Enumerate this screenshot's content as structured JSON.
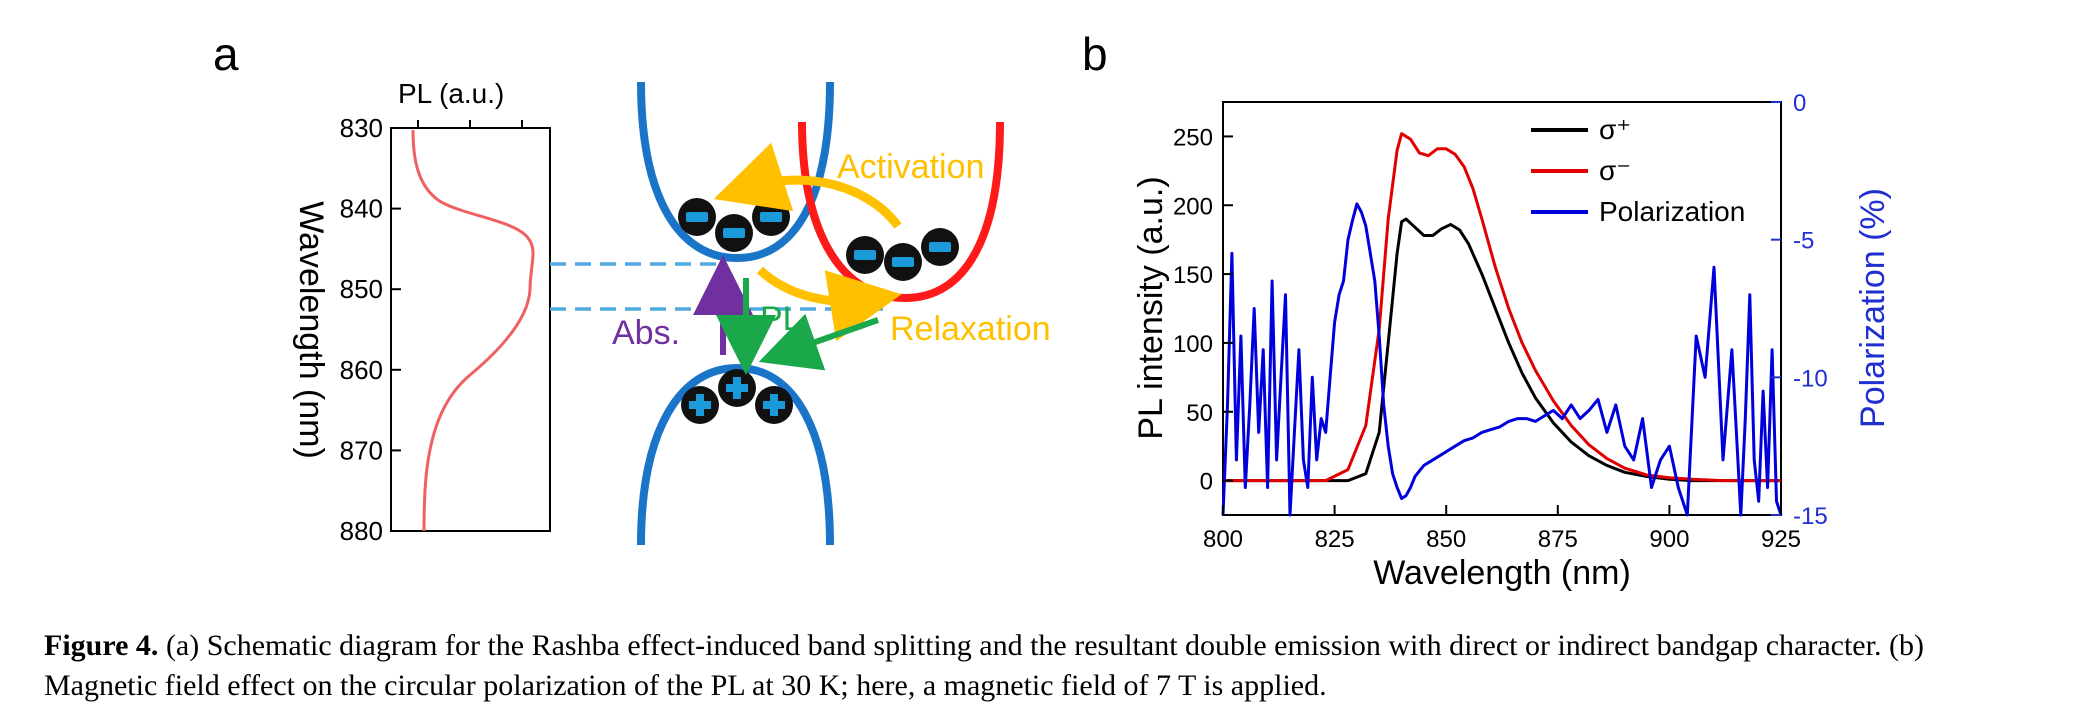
{
  "panel_a": {
    "letter": "a",
    "pl_axis": {
      "top_label": "PL (a.u.)",
      "ylabel": "Wavelength (nm)",
      "ticks": [
        "830",
        "840",
        "850",
        "860",
        "870",
        "880"
      ],
      "curve_color": "#f06060"
    },
    "labels": {
      "activation": "Activation",
      "relaxation": "Relaxation",
      "abs": "Abs.",
      "pl": "PL"
    },
    "carriers": {
      "electron_symbol": "−",
      "hole_symbol": "+"
    },
    "colors": {
      "direct_band": "#1a75c8",
      "indirect_band": "#ff1a1a",
      "activation_arrow": "#ffc000",
      "abs_arrow": "#7030a0",
      "pl_arrow": "#1aa84a",
      "dashed_line": "#4fa8e0"
    }
  },
  "panel_b": {
    "letter": "b"
  },
  "chart_data": {
    "type": "line",
    "xlabel": "Wavelength (nm)",
    "ylabel": "PL intensity (a.u.)",
    "y2label": "Polarization (%)",
    "xlim": [
      800,
      925
    ],
    "ylim": [
      -25,
      275
    ],
    "y2lim": [
      -15,
      0
    ],
    "xticks": [
      "800",
      "825",
      "850",
      "875",
      "900",
      "925"
    ],
    "yticks": [
      "0",
      "50",
      "100",
      "150",
      "200",
      "250"
    ],
    "y2ticks": [
      "0",
      "-5",
      "-10",
      "-15"
    ],
    "legend": {
      "placement": "top-right",
      "entries": [
        "σ⁺",
        "σ⁻",
        "Polarization"
      ]
    },
    "series": [
      {
        "name": "σ⁺",
        "axis": "left",
        "color": "#000000",
        "x": [
          800,
          828,
          832,
          835,
          837,
          839,
          840,
          841,
          843,
          845,
          847,
          849,
          851,
          853,
          855,
          858,
          861,
          864,
          867,
          870,
          874,
          878,
          882,
          886,
          890,
          895,
          900,
          905,
          912,
          925
        ],
        "y": [
          0,
          0,
          5,
          35,
          100,
          165,
          188,
          190,
          184,
          178,
          178,
          183,
          186,
          182,
          172,
          150,
          125,
          100,
          78,
          60,
          42,
          28,
          18,
          11,
          6,
          3,
          1,
          0,
          0,
          0
        ]
      },
      {
        "name": "σ⁻",
        "axis": "left",
        "color": "#e00000",
        "x": [
          800,
          823,
          828,
          832,
          835,
          837,
          839,
          840,
          842,
          844,
          846,
          848,
          850,
          852,
          854,
          856,
          858,
          861,
          864,
          867,
          870,
          874,
          878,
          882,
          886,
          890,
          895,
          900,
          905,
          912,
          925
        ],
        "y": [
          0,
          0,
          8,
          40,
          110,
          190,
          240,
          252,
          248,
          238,
          236,
          241,
          241,
          237,
          228,
          212,
          190,
          155,
          125,
          100,
          80,
          58,
          40,
          26,
          16,
          9,
          4,
          2,
          1,
          0,
          0
        ],
        "note": ""
      },
      {
        "name": "Polarization",
        "axis": "right",
        "color": "#0000dd",
        "x": [
          800,
          801,
          802,
          803,
          804,
          805,
          806,
          807,
          808,
          809,
          810,
          811,
          812,
          813,
          814,
          815,
          816,
          817,
          818,
          819,
          820,
          821,
          822,
          823,
          824,
          825,
          826,
          827,
          828,
          829,
          830,
          831,
          832,
          833,
          834,
          835,
          836,
          837,
          838,
          839,
          840,
          841,
          842,
          843,
          844,
          845,
          846,
          848,
          850,
          852,
          854,
          856,
          858,
          860,
          862,
          864,
          866,
          868,
          870,
          872,
          874,
          876,
          878,
          880,
          882,
          884,
          886,
          888,
          890,
          892,
          894,
          896,
          898,
          900,
          902,
          904,
          906,
          908,
          910,
          912,
          914,
          915,
          916,
          917,
          918,
          919,
          920,
          921,
          922,
          923,
          924,
          925
        ],
        "y": [
          -15,
          -11,
          -5.5,
          -13,
          -8.5,
          -14,
          -11,
          -7.5,
          -12,
          -9,
          -14,
          -6.5,
          -13,
          -10,
          -7,
          -15,
          -12,
          -9,
          -13,
          -14,
          -10,
          -13,
          -11.5,
          -12,
          -10,
          -8,
          -7,
          -6.5,
          -5,
          -4.3,
          -3.7,
          -4,
          -4.5,
          -5.5,
          -6.5,
          -8.5,
          -11,
          -12.5,
          -13.5,
          -14,
          -14.4,
          -14.3,
          -14,
          -13.6,
          -13.4,
          -13.2,
          -13.1,
          -12.9,
          -12.7,
          -12.5,
          -12.3,
          -12.2,
          -12,
          -11.9,
          -11.8,
          -11.6,
          -11.5,
          -11.5,
          -11.6,
          -11.4,
          -11.2,
          -11.5,
          -11,
          -11.5,
          -11.2,
          -10.8,
          -12,
          -11,
          -12.5,
          -13,
          -11.5,
          -14,
          -13,
          -12.5,
          -14,
          -15,
          -8.5,
          -10,
          -6,
          -13,
          -9,
          -12,
          -15,
          -11.5,
          -7,
          -13,
          -14.5,
          -10.5,
          -14,
          -9,
          -14.5,
          -15
        ]
      }
    ]
  },
  "caption": {
    "label": "Figure 4.",
    "text": "(a) Schematic diagram for the Rashba effect-induced band splitting and the resultant double emission with direct or indirect bandgap character. (b) Magnetic field effect on the circular polarization of the PL at 30 K; here, a magnetic field of 7 T is applied."
  }
}
